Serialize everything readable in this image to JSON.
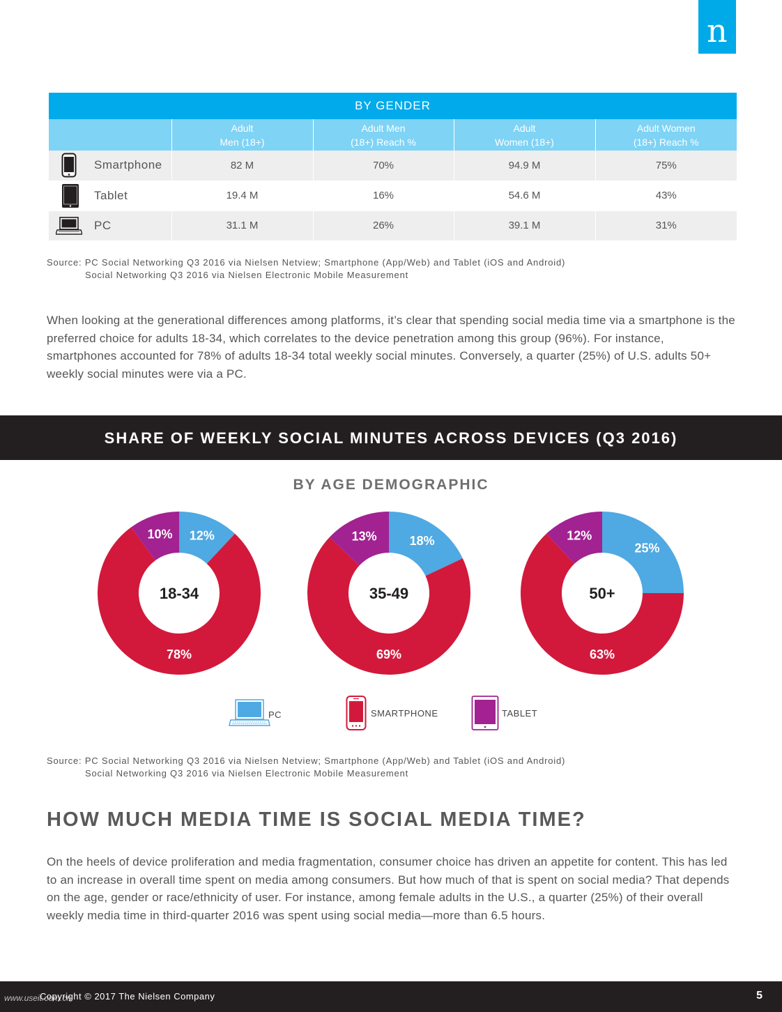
{
  "logo": {
    "glyph": "n",
    "color": "#00a9e8"
  },
  "gender_table": {
    "title": "BY GENDER",
    "columns": [
      "Adult\nMen (18+)",
      "Adult Men\n(18+) Reach %",
      "Adult\nWomen (18+)",
      "Adult Women\n(18+) Reach %"
    ],
    "rows": [
      {
        "device": "Smartphone",
        "icon": "smartphone-icon",
        "values": [
          "82 M",
          "70%",
          "94.9 M",
          "75%"
        ]
      },
      {
        "device": "Tablet",
        "icon": "tablet-icon",
        "values": [
          "19.4 M",
          "16%",
          "54.6 M",
          "43%"
        ]
      },
      {
        "device": "PC",
        "icon": "laptop-icon",
        "values": [
          "31.1 M",
          "26%",
          "39.1 M",
          "31%"
        ]
      }
    ]
  },
  "source1": {
    "line1": "Source: PC Social Networking Q3 2016 via Nielsen Netview; Smartphone (App/Web) and Tablet (iOS and Android)",
    "line2": "Social Networking Q3 2016 via Nielsen Electronic Mobile Measurement"
  },
  "paragraph1": "When looking at the generational differences among platforms, it’s clear that spending social media time via a smartphone is the preferred choice for adults 18-34, which correlates to the device penetration among this group (96%). For instance, smartphones accounted for 78% of adults 18-34 total weekly social minutes. Conversely, a quarter (25%) of U.S. adults 50+ weekly social minutes were via a PC.",
  "banner_title": "SHARE OF WEEKLY SOCIAL MINUTES ACROSS DEVICES (Q3 2016)",
  "subhead": "BY AGE DEMOGRAPHIC",
  "chart_data": {
    "type": "pie",
    "variant": "donut",
    "title": "SHARE OF WEEKLY SOCIAL MINUTES ACROSS DEVICES (Q3 2016)",
    "subtitle": "BY AGE DEMOGRAPHIC",
    "categories": [
      "PC",
      "SMARTPHONE",
      "TABLET"
    ],
    "colors": {
      "PC": "#4fa9e2",
      "SMARTPHONE": "#d2193b",
      "TABLET": "#a12290"
    },
    "series": [
      {
        "name": "18-34",
        "values": {
          "PC": 12,
          "SMARTPHONE": 78,
          "TABLET": 10
        }
      },
      {
        "name": "35-49",
        "values": {
          "PC": 18,
          "SMARTPHONE": 69,
          "TABLET": 13
        }
      },
      {
        "name": "50+",
        "values": {
          "PC": 25,
          "SMARTPHONE": 63,
          "TABLET": 12
        }
      }
    ],
    "legend": [
      "PC",
      "SMARTPHONE",
      "TABLET"
    ],
    "legend_position": "bottom"
  },
  "legend": {
    "pc": "PC",
    "smartphone": "SMARTPHONE",
    "tablet": "TABLET"
  },
  "source2": {
    "line1": "Source: PC Social Networking Q3 2016 via Nielsen Netview; Smartphone (App/Web) and Tablet (iOS and Android)",
    "line2": "Social Networking Q3 2016 via Nielsen Electronic Mobile Measurement"
  },
  "heading2": "HOW MUCH MEDIA TIME IS SOCIAL MEDIA TIME?",
  "paragraph2": "On the heels of device proliferation and media fragmentation, consumer choice has driven an appetite for content. This has led to an increase in overall time spent on media among consumers. But how much of that is spent on social media? That depends on the age, gender or race/ethnicity of user. For instance, among female adults in the U.S., a quarter (25%) of their overall weekly media time in third-quarter 2016 was spent using social media—more than 6.5 hours.",
  "footer": {
    "copyright": "Copyright © 2017 The Nielsen Company",
    "watermark": "www.useit.com.cn",
    "page": "5"
  }
}
